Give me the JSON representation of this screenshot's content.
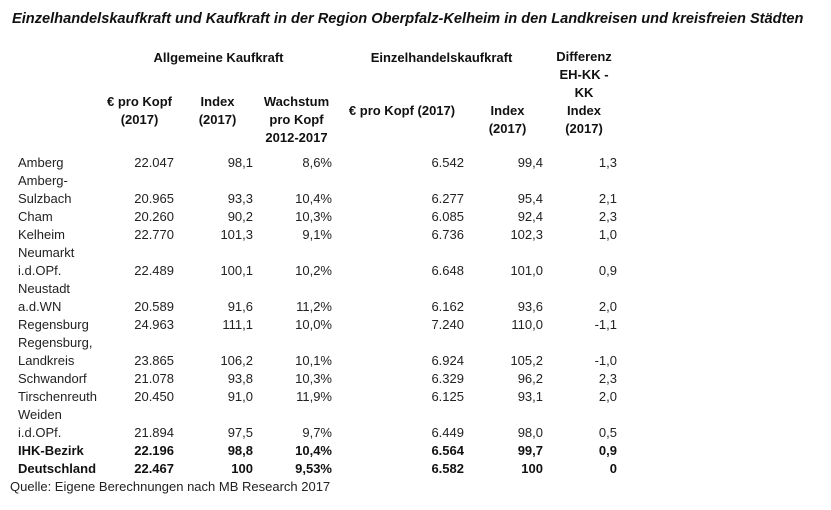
{
  "title": "Einzelhandelskaufkraft und Kaufkraft in der Region Oberpfalz-Kelheim in den Landkreisen und kreisfreien Städten",
  "groups": {
    "general": "Allgemeine Kaufkraft",
    "retail": "Einzelhandelskaufkraft"
  },
  "columns": {
    "kk_eur": "€ pro Kopf\n(2017)",
    "kk_index": "Index (2017)",
    "kk_growth": "Wachstum\npro Kopf\n2012-2017",
    "eh_eur": "€ pro Kopf (2017)",
    "eh_index": "Index (2017)",
    "diff": "Differenz\nEH-KK -\nKK\nIndex\n(2017)"
  },
  "rows": [
    {
      "name": "Amberg",
      "v": [
        "22.047",
        "98,1",
        "8,6%",
        "6.542",
        "99,4",
        "1,3"
      ]
    },
    {
      "name": "Amberg-\nSulzbach",
      "v": [
        "20.965",
        "93,3",
        "10,4%",
        "6.277",
        "95,4",
        "2,1"
      ]
    },
    {
      "name": "Cham",
      "v": [
        "20.260",
        "90,2",
        "10,3%",
        "6.085",
        "92,4",
        "2,3"
      ]
    },
    {
      "name": "Kelheim",
      "v": [
        "22.770",
        "101,3",
        "9,1%",
        "6.736",
        "102,3",
        "1,0"
      ]
    },
    {
      "name": "Neumarkt\ni.d.OPf.",
      "v": [
        "22.489",
        "100,1",
        "10,2%",
        "6.648",
        "101,0",
        "0,9"
      ]
    },
    {
      "name": "Neustadt\na.d.WN",
      "v": [
        "20.589",
        "91,6",
        "11,2%",
        "6.162",
        "93,6",
        "2,0"
      ]
    },
    {
      "name": "Regensburg",
      "v": [
        "24.963",
        "111,1",
        "10,0%",
        "7.240",
        "110,0",
        "-1,1"
      ]
    },
    {
      "name": "Regensburg,\nLandkreis",
      "v": [
        "23.865",
        "106,2",
        "10,1%",
        "6.924",
        "105,2",
        "-1,0"
      ]
    },
    {
      "name": "Schwandorf",
      "v": [
        "21.078",
        "93,8",
        "10,3%",
        "6.329",
        "96,2",
        "2,3"
      ]
    },
    {
      "name": "Tirschenreuth",
      "v": [
        "20.450",
        "91,0",
        "11,9%",
        "6.125",
        "93,1",
        "2,0"
      ]
    },
    {
      "name": "Weiden\ni.d.OPf.",
      "v": [
        "21.894",
        "97,5",
        "9,7%",
        "6.449",
        "98,0",
        "0,5"
      ]
    },
    {
      "name": "IHK-Bezirk",
      "v": [
        "22.196",
        "98,8",
        "10,4%",
        "6.564",
        "99,7",
        "0,9"
      ],
      "bold": true
    },
    {
      "name": "Deutschland",
      "v": [
        "22.467",
        "100",
        "9,53%",
        "6.582",
        "100",
        "0"
      ],
      "bold": true
    }
  ],
  "source": "Quelle: Eigene Berechnungen nach MB Research 2017"
}
